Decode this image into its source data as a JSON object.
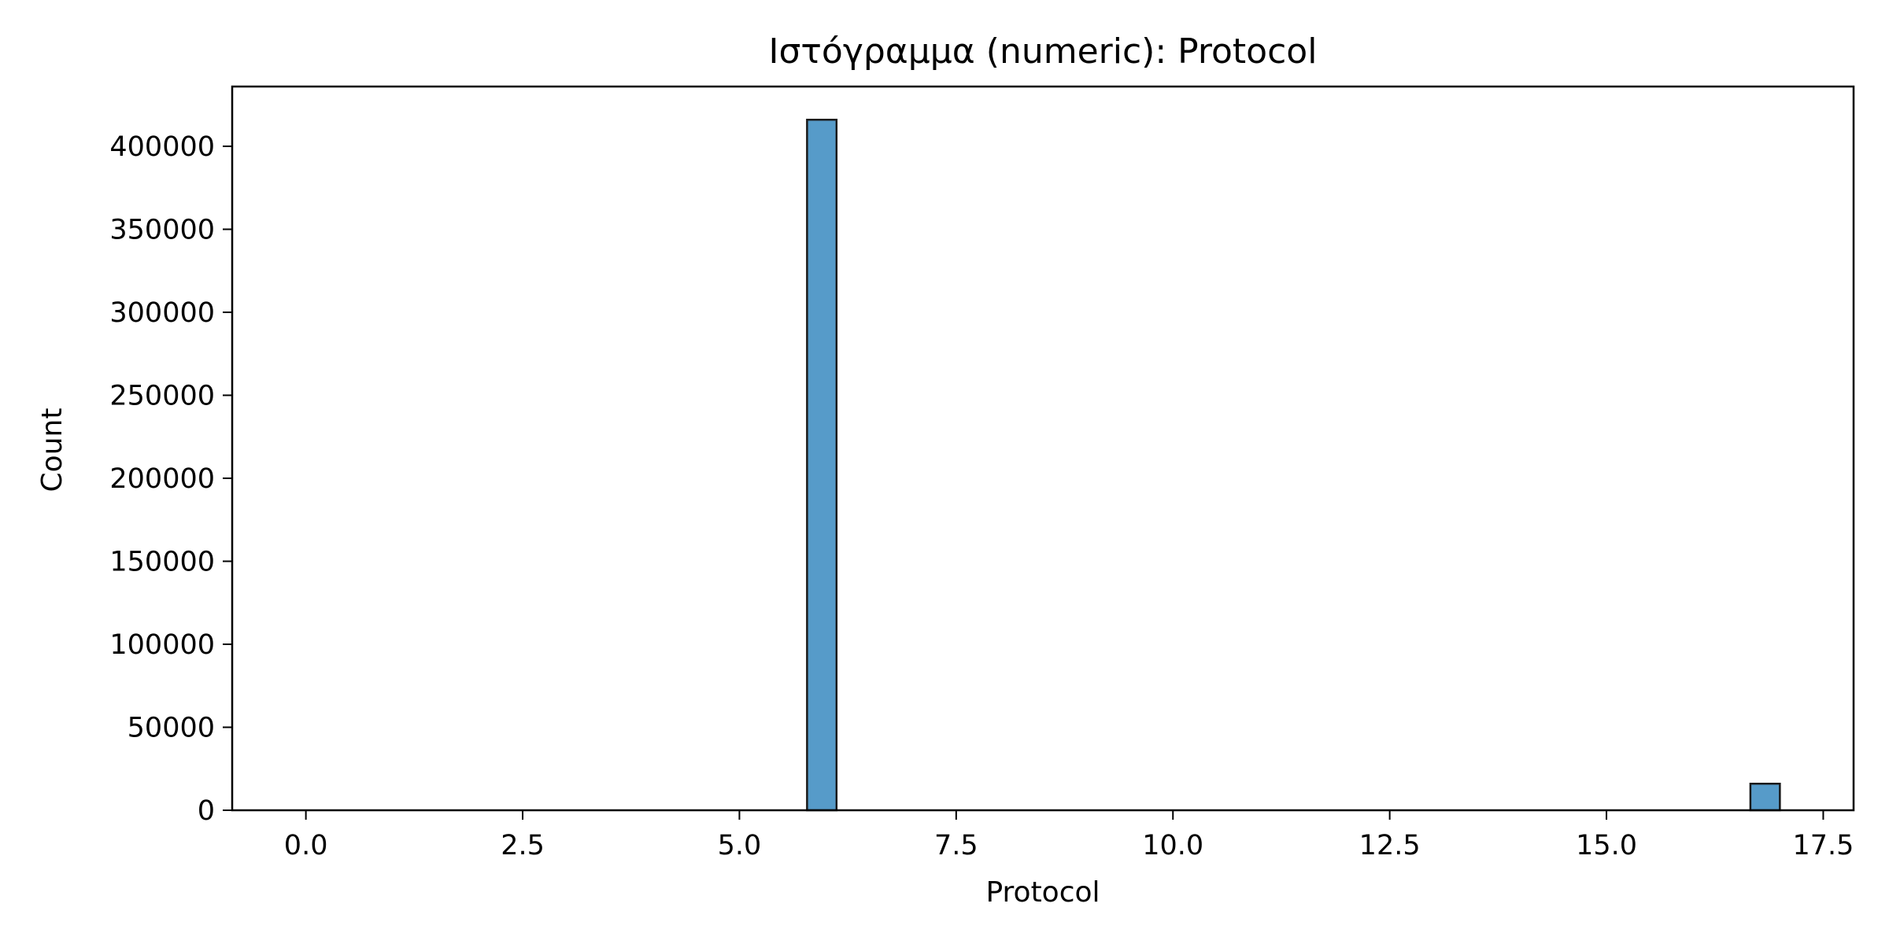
{
  "chart_data": {
    "type": "bar",
    "title": "Ιστόγραμμα (numeric): Protocol",
    "xlabel": "Protocol",
    "ylabel": "Count",
    "xlim": [
      -0.85,
      17.85
    ],
    "ylim": [
      0,
      436000
    ],
    "xticks": [
      0.0,
      2.5,
      5.0,
      7.5,
      10.0,
      12.5,
      15.0,
      17.5
    ],
    "xtick_labels": [
      "0.0",
      "2.5",
      "5.0",
      "7.5",
      "10.0",
      "12.5",
      "15.0",
      "17.5"
    ],
    "yticks": [
      0,
      50000,
      100000,
      150000,
      200000,
      250000,
      300000,
      350000,
      400000
    ],
    "ytick_labels": [
      "0",
      "50000",
      "100000",
      "150000",
      "200000",
      "250000",
      "300000",
      "350000",
      "400000"
    ],
    "bins": [
      {
        "x_start": 5.78,
        "x_end": 6.12,
        "count": 416000
      },
      {
        "x_start": 16.66,
        "x_end": 17.0,
        "count": 16000
      }
    ],
    "grid": false,
    "bar_color": "#569bc9",
    "edge_color": "#1a1a1a"
  }
}
